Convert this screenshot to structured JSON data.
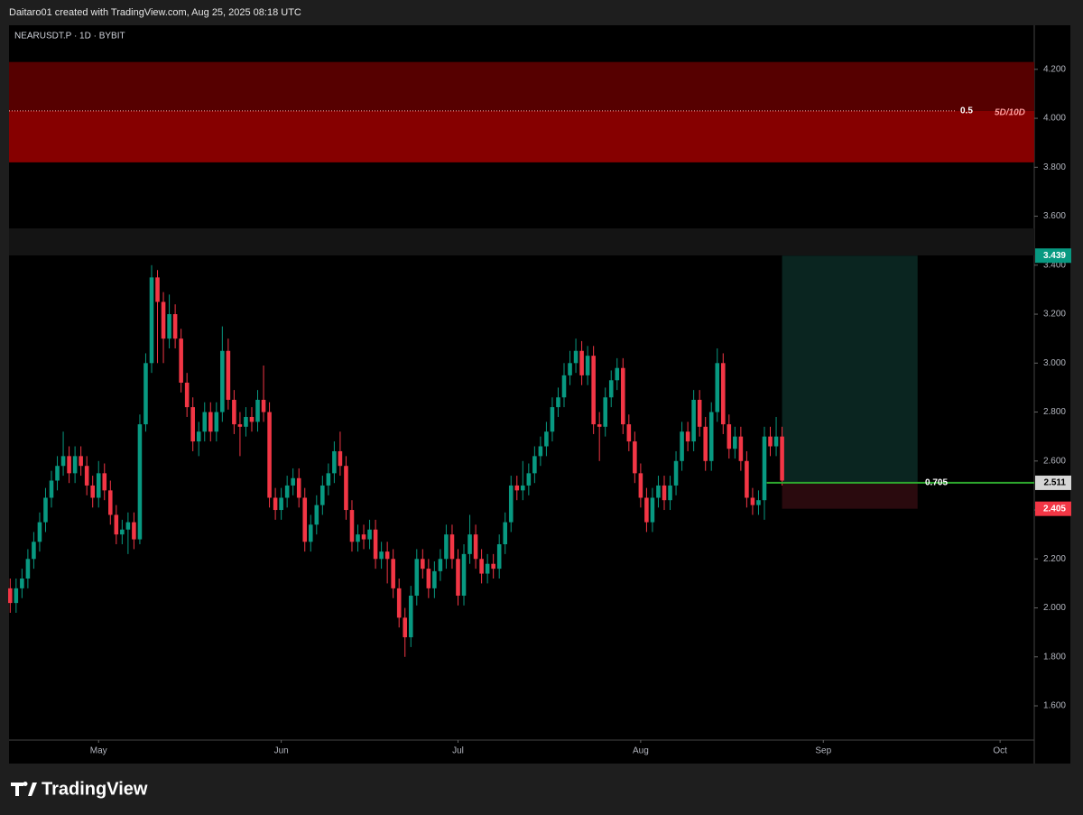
{
  "header": "Daitaro01 created with TradingView.com, Aug 25, 2025 08:18 UTC",
  "brand": "TradingView",
  "chart_data": {
    "type": "candlestick",
    "title": "NEARUSDT.P · 1D · BYBIT",
    "up_color": "#089981",
    "down_color": "#f23645",
    "xlim": [
      -0.2,
      173.8
    ],
    "xticks": [
      {
        "value": 15,
        "label": "May"
      },
      {
        "value": 46,
        "label": "Jun"
      },
      {
        "value": 76,
        "label": "Jul"
      },
      {
        "value": 107,
        "label": "Aug"
      },
      {
        "value": 138,
        "label": "Sep"
      },
      {
        "value": 168,
        "label": "Oct"
      }
    ],
    "ylim": [
      1.46,
      4.38
    ],
    "yticks": [
      {
        "value": 1.6,
        "label": "1.600"
      },
      {
        "value": 1.8,
        "label": "1.800"
      },
      {
        "value": 2.0,
        "label": "2.000"
      },
      {
        "value": 2.2,
        "label": "2.200"
      },
      {
        "value": 2.4,
        "label": "2.400"
      },
      {
        "value": 2.6,
        "label": "2.600"
      },
      {
        "value": 2.8,
        "label": "2.800"
      },
      {
        "value": 3.0,
        "label": "3.000"
      },
      {
        "value": 3.2,
        "label": "3.200"
      },
      {
        "value": 3.4,
        "label": "3.400"
      },
      {
        "value": 3.6,
        "label": "3.600"
      },
      {
        "value": 3.8,
        "label": "3.800"
      },
      {
        "value": 4.0,
        "label": "4.000"
      },
      {
        "value": 4.2,
        "label": "4.200"
      }
    ],
    "open": [
      2.08,
      2.02,
      2.08,
      2.12,
      2.2,
      2.27,
      2.35,
      2.45,
      2.52,
      2.58,
      2.62,
      2.55,
      2.62,
      2.58,
      2.5,
      2.45,
      2.55,
      2.48,
      2.38,
      2.3,
      2.32,
      2.35,
      2.28,
      2.75,
      3.0,
      3.35,
      3.25,
      3.1,
      3.2,
      3.1,
      2.92,
      2.82,
      2.68,
      2.72,
      2.8,
      2.72,
      2.8,
      3.05,
      2.85,
      2.75,
      2.74,
      2.78,
      2.76,
      2.85,
      2.8,
      2.45,
      2.4,
      2.45,
      2.5,
      2.53,
      2.45,
      2.27,
      2.34,
      2.42,
      2.5,
      2.55,
      2.64,
      2.58,
      2.4,
      2.27,
      2.3,
      2.28,
      2.32,
      2.2,
      2.23,
      2.2,
      2.08,
      1.96,
      1.88,
      2.05,
      2.2,
      2.16,
      2.08,
      2.15,
      2.2,
      2.3,
      2.2,
      2.05,
      2.22,
      2.3,
      2.2,
      2.14,
      2.18,
      2.16,
      2.26,
      2.35,
      2.5,
      2.48,
      2.5,
      2.55,
      2.62,
      2.66,
      2.72,
      2.82,
      2.86,
      2.95,
      3.0,
      3.05,
      2.95,
      3.03,
      2.75,
      2.74,
      2.86,
      2.93,
      2.98,
      2.75,
      2.68,
      2.55,
      2.45,
      2.35,
      2.45,
      2.5,
      2.44,
      2.5,
      2.6,
      2.72,
      2.68,
      2.85,
      2.74,
      2.6,
      2.8,
      3.0,
      2.75,
      2.65,
      2.7,
      2.6,
      2.45,
      2.42,
      2.44,
      2.7,
      2.66,
      2.7
    ],
    "high": [
      2.12,
      2.12,
      2.16,
      2.24,
      2.31,
      2.39,
      2.49,
      2.56,
      2.62,
      2.72,
      2.66,
      2.66,
      2.66,
      2.62,
      2.54,
      2.6,
      2.59,
      2.52,
      2.42,
      2.36,
      2.39,
      2.39,
      2.79,
      3.04,
      3.4,
      3.38,
      3.29,
      3.28,
      3.24,
      3.14,
      2.96,
      2.86,
      2.76,
      2.84,
      2.84,
      2.84,
      3.15,
      3.1,
      2.89,
      2.8,
      2.82,
      2.82,
      2.89,
      2.99,
      2.84,
      2.49,
      2.49,
      2.54,
      2.57,
      2.57,
      2.49,
      2.38,
      2.46,
      2.54,
      2.59,
      2.68,
      2.72,
      2.62,
      2.44,
      2.34,
      2.34,
      2.36,
      2.36,
      2.27,
      2.27,
      2.24,
      2.12,
      2.0,
      2.09,
      2.24,
      2.24,
      2.2,
      2.19,
      2.24,
      2.34,
      2.34,
      2.24,
      2.26,
      2.38,
      2.34,
      2.24,
      2.22,
      2.22,
      2.3,
      2.39,
      2.54,
      2.54,
      2.6,
      2.59,
      2.66,
      2.7,
      2.76,
      2.86,
      2.9,
      3.0,
      3.05,
      3.1,
      3.09,
      3.07,
      3.07,
      2.8,
      2.9,
      2.97,
      3.02,
      3.02,
      2.79,
      2.72,
      2.59,
      2.49,
      2.49,
      2.54,
      2.54,
      2.54,
      2.64,
      2.76,
      2.76,
      2.89,
      2.89,
      2.78,
      2.84,
      3.06,
      3.04,
      2.79,
      2.74,
      2.74,
      2.64,
      2.49,
      2.48,
      2.74,
      2.74,
      2.78,
      2.74
    ],
    "low": [
      1.98,
      1.98,
      2.04,
      2.08,
      2.16,
      2.23,
      2.31,
      2.41,
      2.48,
      2.54,
      2.51,
      2.51,
      2.54,
      2.46,
      2.41,
      2.41,
      2.44,
      2.34,
      2.26,
      2.26,
      2.22,
      2.24,
      2.26,
      2.72,
      2.96,
      3.0,
      3.0,
      3.06,
      3.06,
      2.88,
      2.78,
      2.64,
      2.62,
      2.68,
      2.68,
      2.68,
      2.76,
      2.81,
      2.71,
      2.62,
      2.7,
      2.72,
      2.72,
      2.76,
      2.41,
      2.36,
      2.36,
      2.41,
      2.46,
      2.41,
      2.23,
      2.23,
      2.3,
      2.38,
      2.46,
      2.51,
      2.54,
      2.36,
      2.23,
      2.23,
      2.24,
      2.24,
      2.16,
      2.16,
      2.1,
      2.04,
      1.92,
      1.8,
      1.84,
      2.01,
      2.12,
      2.04,
      2.04,
      2.11,
      2.16,
      2.16,
      2.01,
      2.01,
      2.18,
      2.16,
      2.1,
      2.1,
      2.12,
      2.12,
      2.22,
      2.31,
      2.44,
      2.44,
      2.46,
      2.51,
      2.58,
      2.62,
      2.68,
      2.78,
      2.82,
      2.91,
      2.96,
      2.91,
      2.91,
      2.71,
      2.6,
      2.7,
      2.82,
      2.89,
      2.71,
      2.64,
      2.51,
      2.41,
      2.31,
      2.31,
      2.41,
      2.4,
      2.4,
      2.46,
      2.56,
      2.64,
      2.64,
      2.7,
      2.56,
      2.56,
      2.76,
      2.71,
      2.61,
      2.61,
      2.56,
      2.41,
      2.38,
      2.38,
      2.36,
      2.62,
      2.62,
      2.5
    ],
    "close": [
      2.02,
      2.08,
      2.12,
      2.2,
      2.27,
      2.35,
      2.45,
      2.52,
      2.58,
      2.62,
      2.55,
      2.62,
      2.58,
      2.5,
      2.45,
      2.55,
      2.48,
      2.38,
      2.3,
      2.32,
      2.35,
      2.28,
      2.75,
      3.0,
      3.35,
      3.25,
      3.1,
      3.2,
      3.1,
      2.92,
      2.82,
      2.68,
      2.72,
      2.8,
      2.72,
      2.8,
      3.05,
      2.85,
      2.75,
      2.74,
      2.78,
      2.76,
      2.85,
      2.8,
      2.45,
      2.4,
      2.45,
      2.5,
      2.53,
      2.45,
      2.27,
      2.34,
      2.42,
      2.5,
      2.55,
      2.64,
      2.58,
      2.4,
      2.27,
      2.3,
      2.28,
      2.32,
      2.2,
      2.23,
      2.2,
      2.08,
      1.96,
      1.88,
      2.05,
      2.2,
      2.16,
      2.08,
      2.15,
      2.2,
      2.3,
      2.2,
      2.05,
      2.22,
      2.3,
      2.2,
      2.14,
      2.18,
      2.16,
      2.26,
      2.35,
      2.5,
      2.48,
      2.5,
      2.55,
      2.62,
      2.66,
      2.72,
      2.82,
      2.86,
      2.95,
      3.0,
      3.05,
      2.95,
      3.03,
      2.75,
      2.74,
      2.86,
      2.93,
      2.98,
      2.75,
      2.68,
      2.55,
      2.45,
      2.35,
      2.45,
      2.5,
      2.44,
      2.5,
      2.6,
      2.72,
      2.68,
      2.85,
      2.74,
      2.6,
      2.8,
      3.0,
      2.75,
      2.65,
      2.7,
      2.6,
      2.45,
      2.42,
      2.44,
      2.7,
      2.66,
      2.7,
      2.52
    ],
    "zone": {
      "top": 4.23,
      "level": 4.03,
      "bottom": 3.82,
      "level_label": "0.5",
      "label": "5D/10D"
    },
    "band": {
      "top": 3.55,
      "bottom": 3.44
    },
    "position": {
      "start": 131,
      "end": 154,
      "target": 3.439,
      "entry": 2.511,
      "stop": 2.405,
      "ratio": 0.705
    }
  }
}
